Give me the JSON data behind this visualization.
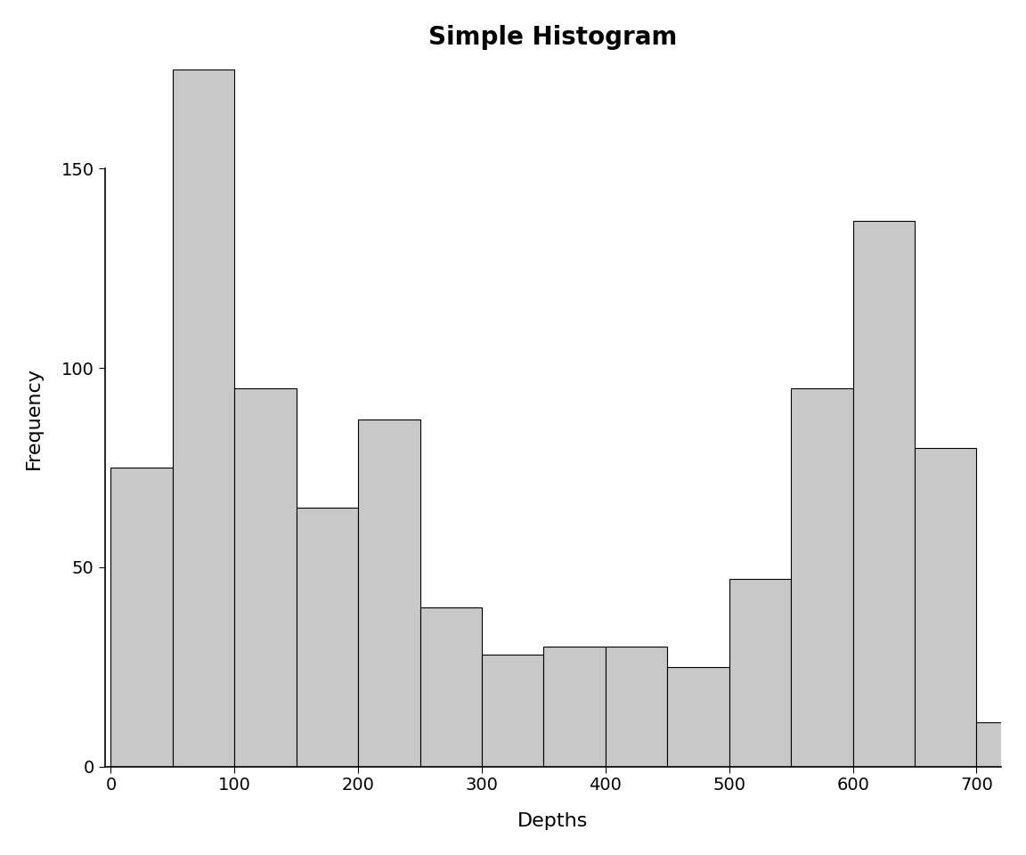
{
  "title": "Simple Histogram",
  "xlabel": "Depths",
  "ylabel": "Frequency",
  "bar_color": "#c8c8c8",
  "bar_edge_color": "#000000",
  "bar_edge_width": 0.8,
  "background_color": "#ffffff",
  "bin_edges": [
    0,
    50,
    100,
    150,
    200,
    250,
    300,
    350,
    400,
    450,
    500,
    550,
    600,
    650,
    700,
    750
  ],
  "frequencies": [
    75,
    175,
    95,
    65,
    87,
    40,
    28,
    30,
    30,
    25,
    47,
    95,
    137,
    80,
    11
  ],
  "xlim": [
    -5,
    720
  ],
  "ylim": [
    0,
    175
  ],
  "yticks": [
    0,
    50,
    100,
    150
  ],
  "xticks": [
    0,
    100,
    200,
    300,
    400,
    500,
    600,
    700
  ],
  "title_fontsize": 20,
  "label_fontsize": 16,
  "tick_fontsize": 14,
  "title_fontweight": "bold"
}
